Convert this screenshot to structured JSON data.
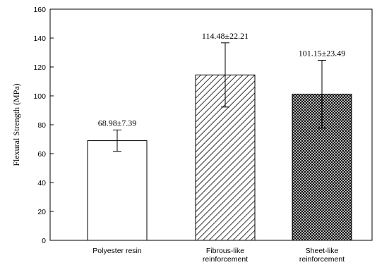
{
  "chart_data": {
    "type": "bar",
    "title": "",
    "xlabel": "",
    "ylabel": "Flexural Strength (MPa)",
    "ylim": [
      0,
      160
    ],
    "yticks": [
      0,
      20,
      40,
      60,
      80,
      100,
      120,
      140,
      160
    ],
    "grid": false,
    "categories": [
      [
        "Polyester resin"
      ],
      [
        "Fibrous-like",
        "reinforcement"
      ],
      [
        "Sheet-like",
        "reinforcement"
      ]
    ],
    "values": [
      68.98,
      114.48,
      101.15
    ],
    "errors": [
      7.39,
      22.21,
      23.49
    ],
    "data_labels": [
      "68.98±7.39",
      "114.48±22.21",
      "101.15±23.49"
    ],
    "fills": [
      "solid-white",
      "diagonal-hatch",
      "cross-hatch"
    ]
  }
}
